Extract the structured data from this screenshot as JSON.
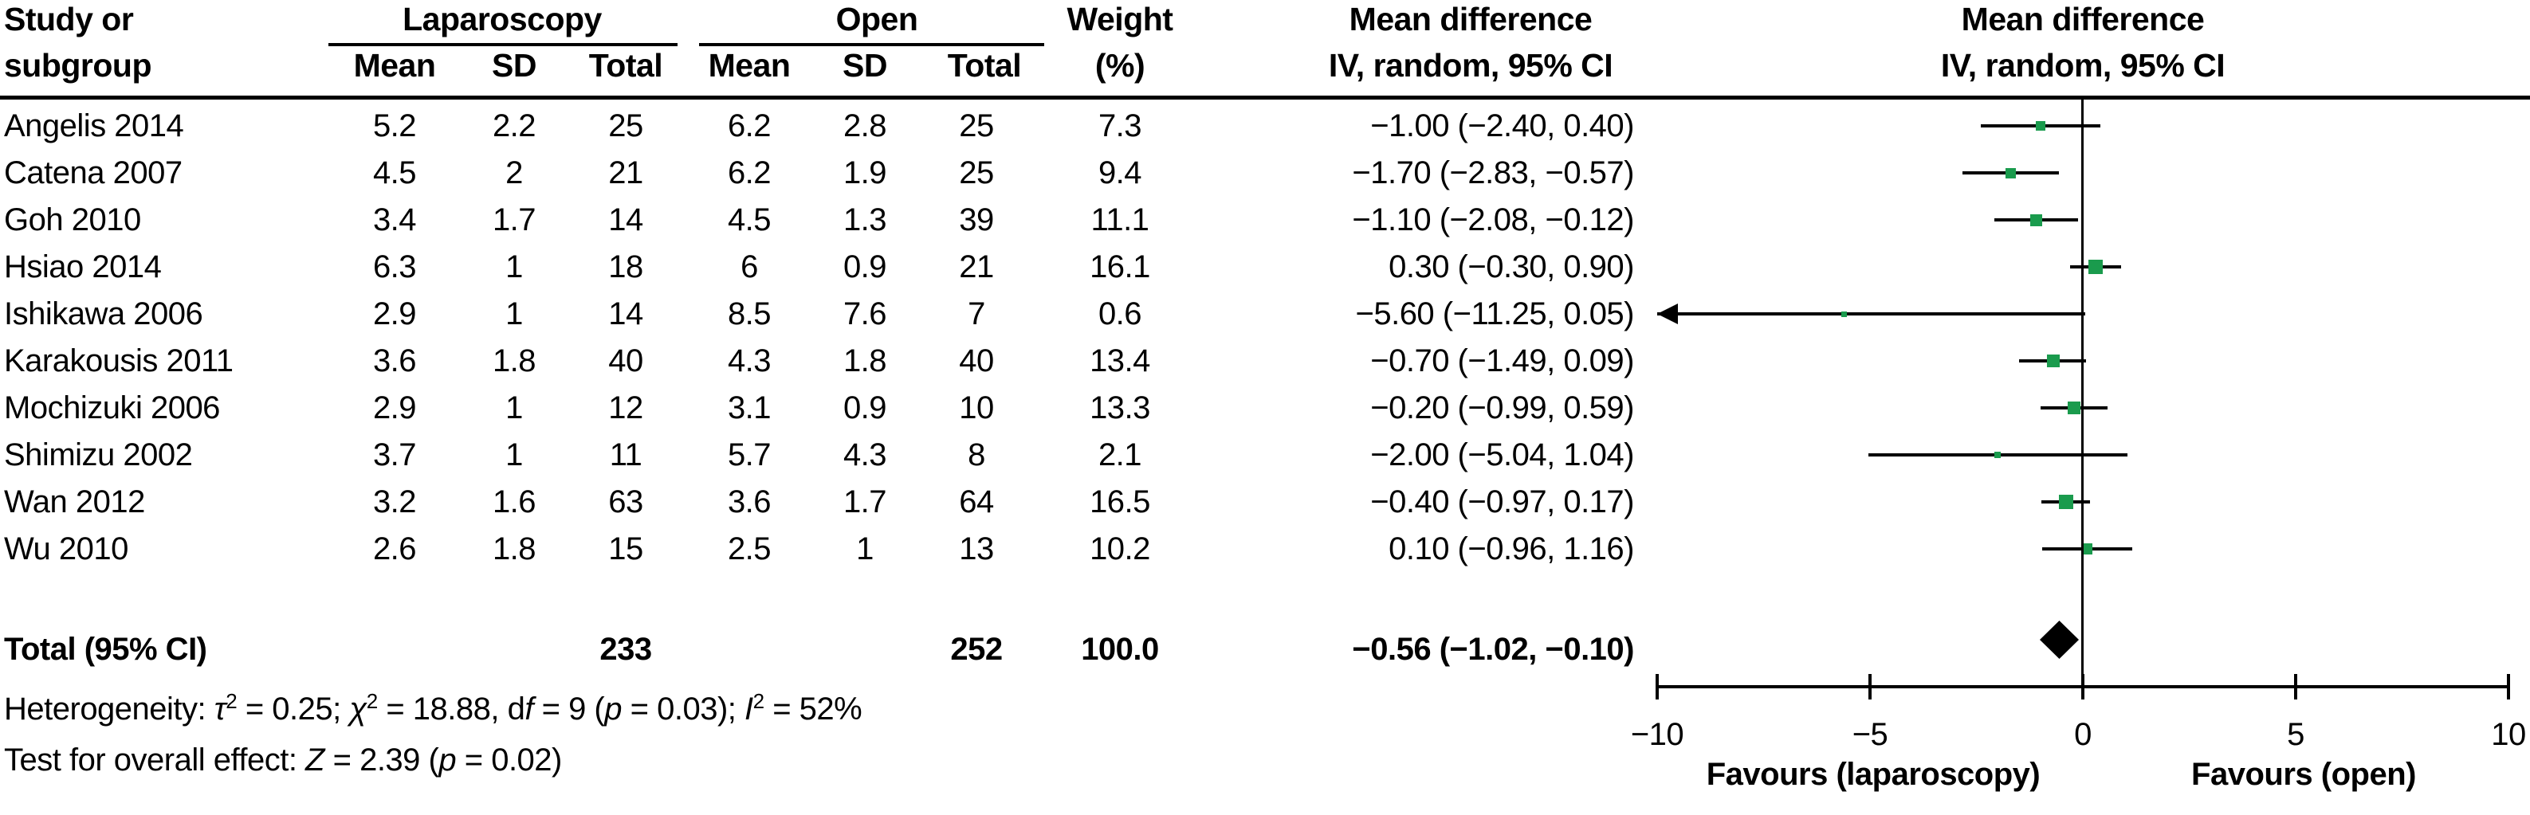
{
  "header": {
    "study_col_line1": "Study or",
    "study_col_line2": "subgroup",
    "group1": "Laparoscopy",
    "group2": "Open",
    "sub_cols": [
      "Mean",
      "SD",
      "Total"
    ],
    "weight_line1": "Weight",
    "weight_line2": "(%)",
    "md_title": "Mean difference",
    "md_subtitle": "IV, random, 95% CI"
  },
  "chart_data": {
    "type": "forest",
    "marker_color": "#1A9B4D",
    "diamond_color": "#000000",
    "axis": {
      "min": -10,
      "max": 10,
      "ticks": [
        -10,
        -5,
        0,
        5,
        10
      ],
      "tick_labels": [
        "−10",
        "−5",
        "0",
        "5",
        "10"
      ]
    },
    "favours_left": "Favours (laparoscopy)",
    "favours_right": "Favours (open)",
    "studies": [
      {
        "name": "Angelis 2014",
        "lap_mean": "5.2",
        "lap_sd": "2.2",
        "lap_total": "25",
        "open_mean": "6.2",
        "open_sd": "2.8",
        "open_total": "25",
        "weight": "7.3",
        "md": -1.0,
        "ci_low": -2.4,
        "ci_high": 0.4,
        "ci_text": "−1.00 (−2.40, 0.40)"
      },
      {
        "name": "Catena 2007",
        "lap_mean": "4.5",
        "lap_sd": "2",
        "lap_total": "21",
        "open_mean": "6.2",
        "open_sd": "1.9",
        "open_total": "25",
        "weight": "9.4",
        "md": -1.7,
        "ci_low": -2.83,
        "ci_high": -0.57,
        "ci_text": "−1.70 (−2.83, −0.57)"
      },
      {
        "name": "Goh 2010",
        "lap_mean": "3.4",
        "lap_sd": "1.7",
        "lap_total": "14",
        "open_mean": "4.5",
        "open_sd": "1.3",
        "open_total": "39",
        "weight": "11.1",
        "md": -1.1,
        "ci_low": -2.08,
        "ci_high": -0.12,
        "ci_text": "−1.10 (−2.08, −0.12)"
      },
      {
        "name": "Hsiao 2014",
        "lap_mean": "6.3",
        "lap_sd": "1",
        "lap_total": "18",
        "open_mean": "6",
        "open_sd": "0.9",
        "open_total": "21",
        "weight": "16.1",
        "md": 0.3,
        "ci_low": -0.3,
        "ci_high": 0.9,
        "ci_text": "0.30 (−0.30, 0.90)"
      },
      {
        "name": "Ishikawa 2006",
        "lap_mean": "2.9",
        "lap_sd": "1",
        "lap_total": "14",
        "open_mean": "8.5",
        "open_sd": "7.6",
        "open_total": "7",
        "weight": "0.6",
        "md": -5.6,
        "ci_low": -11.25,
        "ci_high": 0.05,
        "ci_text": "−5.60 (−11.25, 0.05)"
      },
      {
        "name": "Karakousis 2011",
        "lap_mean": "3.6",
        "lap_sd": "1.8",
        "lap_total": "40",
        "open_mean": "4.3",
        "open_sd": "1.8",
        "open_total": "40",
        "weight": "13.4",
        "md": -0.7,
        "ci_low": -1.49,
        "ci_high": 0.09,
        "ci_text": "−0.70 (−1.49, 0.09)"
      },
      {
        "name": "Mochizuki 2006",
        "lap_mean": "2.9",
        "lap_sd": "1",
        "lap_total": "12",
        "open_mean": "3.1",
        "open_sd": "0.9",
        "open_total": "10",
        "weight": "13.3",
        "md": -0.2,
        "ci_low": -0.99,
        "ci_high": 0.59,
        "ci_text": "−0.20 (−0.99, 0.59)"
      },
      {
        "name": "Shimizu 2002",
        "lap_mean": "3.7",
        "lap_sd": "1",
        "lap_total": "11",
        "open_mean": "5.7",
        "open_sd": "4.3",
        "open_total": "8",
        "weight": "2.1",
        "md": -2.0,
        "ci_low": -5.04,
        "ci_high": 1.04,
        "ci_text": "−2.00 (−5.04, 1.04)"
      },
      {
        "name": "Wan 2012",
        "lap_mean": "3.2",
        "lap_sd": "1.6",
        "lap_total": "63",
        "open_mean": "3.6",
        "open_sd": "1.7",
        "open_total": "64",
        "weight": "16.5",
        "md": -0.4,
        "ci_low": -0.97,
        "ci_high": 0.17,
        "ci_text": "−0.40 (−0.97, 0.17)"
      },
      {
        "name": "Wu 2010",
        "lap_mean": "2.6",
        "lap_sd": "1.8",
        "lap_total": "15",
        "open_mean": "2.5",
        "open_sd": "1",
        "open_total": "13",
        "weight": "10.2",
        "md": 0.1,
        "ci_low": -0.96,
        "ci_high": 1.16,
        "ci_text": "0.10 (−0.96, 1.16)"
      }
    ],
    "total": {
      "label": "Total (95% CI)",
      "lap_total": "233",
      "open_total": "252",
      "weight": "100.0",
      "md": -0.56,
      "ci_low": -1.02,
      "ci_high": -0.1,
      "ci_text": "−0.56 (−1.02, −0.10)"
    }
  },
  "footnotes": {
    "heterogeneity_segments": [
      {
        "t": "Heterogeneity: "
      },
      {
        "t": "τ",
        "i": true
      },
      {
        "t": "2",
        "sup": true
      },
      {
        "t": " = 0.25; "
      },
      {
        "t": "χ",
        "i": true
      },
      {
        "t": "2",
        "sup": true
      },
      {
        "t": " = 18.88, d"
      },
      {
        "t": "f",
        "i": true
      },
      {
        "t": " = 9 ("
      },
      {
        "t": "p",
        "i": true
      },
      {
        "t": " = 0.03); "
      },
      {
        "t": "I",
        "i": true
      },
      {
        "t": "2",
        "sup": true
      },
      {
        "t": " = 52%"
      }
    ],
    "overall_effect_segments": [
      {
        "t": "Test for overall effect: "
      },
      {
        "t": "Z",
        "i": true
      },
      {
        "t": " = 2.39 ("
      },
      {
        "t": "p",
        "i": true
      },
      {
        "t": " = 0.02)"
      }
    ]
  }
}
